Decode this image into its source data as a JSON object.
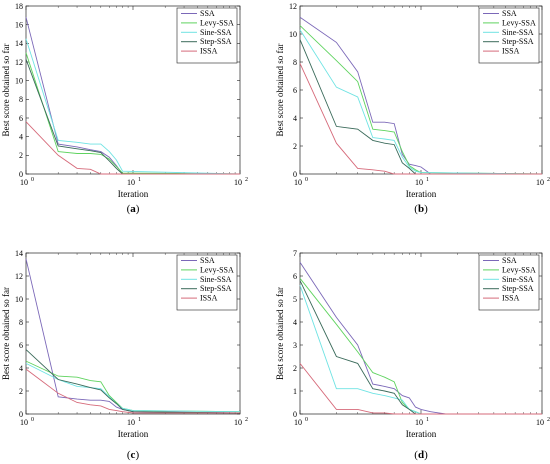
{
  "chart_data": [
    {
      "type": "line",
      "caption": "(a)",
      "xlabel": "Iteration",
      "ylabel": "Best score obtained so far",
      "x_scale": "log",
      "xlim": [
        1,
        100
      ],
      "ylim": [
        0,
        18
      ],
      "x_ticks": [
        1,
        10,
        100
      ],
      "x_tick_labels": [
        "10",
        "10",
        "10"
      ],
      "x_tick_exponents": [
        "0",
        "1",
        "2"
      ],
      "y_ticks": [
        0,
        2,
        4,
        6,
        8,
        10,
        12,
        14,
        16,
        18
      ],
      "y_tick_labels": [
        "0",
        "2",
        "4",
        "6",
        "8",
        "10",
        "12",
        "14",
        "16",
        "18"
      ],
      "legend_position": "top-right",
      "series": [
        {
          "name": "SSA",
          "color": "#7b68b8",
          "x": [
            1,
            2,
            3,
            4,
            5,
            6,
            7,
            8,
            100
          ],
          "y": [
            16.8,
            3.2,
            2.9,
            2.6,
            2.4,
            1.8,
            0.9,
            0.0,
            0.0
          ]
        },
        {
          "name": "Levy-SSA",
          "color": "#5fd35f",
          "x": [
            1,
            2,
            3,
            4,
            5,
            6,
            7,
            8,
            100
          ],
          "y": [
            13.0,
            2.4,
            2.2,
            2.2,
            2.1,
            1.6,
            0.8,
            0.1,
            0.0
          ]
        },
        {
          "name": "Sine-SSA",
          "color": "#6fe3e3",
          "x": [
            1,
            2,
            3,
            4,
            5,
            6,
            7,
            8,
            100
          ],
          "y": [
            14.5,
            3.6,
            3.4,
            3.2,
            3.2,
            2.4,
            1.5,
            0.3,
            0.0
          ]
        },
        {
          "name": "Step-SSA",
          "color": "#3a6a5a",
          "x": [
            1,
            2,
            3,
            4,
            5,
            6,
            7,
            8,
            100
          ],
          "y": [
            12.3,
            3.0,
            2.7,
            2.5,
            2.3,
            1.4,
            0.6,
            0.0,
            0.0
          ]
        },
        {
          "name": "ISSA",
          "color": "#d66a7a",
          "x": [
            1,
            2,
            3,
            4,
            5,
            100
          ],
          "y": [
            5.6,
            2.0,
            0.6,
            0.5,
            0.0,
            0.0
          ]
        }
      ]
    },
    {
      "type": "line",
      "caption": "(b)",
      "xlabel": "Iteration",
      "ylabel": "Best score obtained so far",
      "x_scale": "log",
      "xlim": [
        1,
        100
      ],
      "ylim": [
        0,
        12
      ],
      "x_ticks": [
        1,
        10,
        100
      ],
      "x_tick_labels": [
        "10",
        "10",
        "10"
      ],
      "x_tick_exponents": [
        "0",
        "1",
        "2"
      ],
      "y_ticks": [
        0,
        2,
        4,
        6,
        8,
        10,
        12
      ],
      "y_tick_labels": [
        "0",
        "2",
        "4",
        "6",
        "8",
        "10",
        "12"
      ],
      "legend_position": "top-right",
      "series": [
        {
          "name": "SSA",
          "color": "#7b68b8",
          "x": [
            1,
            2,
            3,
            4,
            5,
            6,
            7,
            8,
            9,
            10,
            12,
            100
          ],
          "y": [
            11.2,
            9.4,
            7.3,
            3.7,
            3.7,
            3.6,
            1.4,
            0.7,
            0.6,
            0.5,
            0.0,
            0.0
          ]
        },
        {
          "name": "Levy-SSA",
          "color": "#5fd35f",
          "x": [
            1,
            2,
            3,
            4,
            5,
            6,
            7,
            8,
            9,
            10,
            100
          ],
          "y": [
            10.6,
            8.1,
            6.6,
            3.2,
            3.1,
            3.0,
            1.6,
            0.6,
            0.3,
            0.1,
            0.0
          ]
        },
        {
          "name": "Sine-SSA",
          "color": "#6fe3e3",
          "x": [
            1,
            2,
            3,
            4,
            5,
            6,
            7,
            8,
            9,
            10,
            100
          ],
          "y": [
            10.3,
            6.2,
            5.5,
            2.6,
            2.5,
            2.4,
            1.2,
            0.5,
            0.2,
            0.1,
            0.0
          ]
        },
        {
          "name": "Step-SSA",
          "color": "#3a6a5a",
          "x": [
            1,
            2,
            3,
            4,
            5,
            6,
            7,
            8,
            9,
            100
          ],
          "y": [
            9.6,
            3.4,
            3.2,
            2.4,
            2.2,
            2.1,
            0.8,
            0.4,
            0.0,
            0.0
          ]
        },
        {
          "name": "ISSA",
          "color": "#d66a7a",
          "x": [
            1,
            2,
            3,
            4,
            5,
            6,
            100
          ],
          "y": [
            7.9,
            2.2,
            0.4,
            0.3,
            0.2,
            0.0,
            0.0
          ]
        }
      ]
    },
    {
      "type": "line",
      "caption": "(c)",
      "xlabel": "Iteration",
      "ylabel": "Best score obtained so far",
      "x_scale": "log",
      "xlim": [
        1,
        100
      ],
      "ylim": [
        0,
        14
      ],
      "x_ticks": [
        1,
        10,
        100
      ],
      "x_tick_labels": [
        "10",
        "10",
        "10"
      ],
      "x_tick_exponents": [
        "0",
        "1",
        "2"
      ],
      "y_ticks": [
        0,
        2,
        4,
        6,
        8,
        10,
        12,
        14
      ],
      "y_tick_labels": [
        "0",
        "2",
        "4",
        "6",
        "8",
        "10",
        "12",
        "14"
      ],
      "legend_position": "top-right",
      "series": [
        {
          "name": "SSA",
          "color": "#7b68b8",
          "x": [
            1,
            2,
            3,
            4,
            5,
            6,
            7,
            8,
            10,
            100
          ],
          "y": [
            13.5,
            1.5,
            1.3,
            1.2,
            1.2,
            1.1,
            0.6,
            0.4,
            0.2,
            0.1
          ]
        },
        {
          "name": "Levy-SSA",
          "color": "#5fd35f",
          "x": [
            1,
            2,
            3,
            4,
            5,
            6,
            7,
            8,
            10,
            100
          ],
          "y": [
            4.6,
            3.3,
            3.2,
            2.9,
            2.8,
            1.6,
            1.0,
            0.5,
            0.3,
            0.2
          ]
        },
        {
          "name": "Sine-SSA",
          "color": "#6fe3e3",
          "x": [
            1,
            2,
            3,
            4,
            5,
            6,
            7,
            8,
            10,
            100
          ],
          "y": [
            4.4,
            3.0,
            2.4,
            2.3,
            2.2,
            1.5,
            0.9,
            0.5,
            0.3,
            0.2
          ]
        },
        {
          "name": "Step-SSA",
          "color": "#3a6a5a",
          "x": [
            1,
            2,
            3,
            4,
            5,
            6,
            7,
            8,
            10,
            100
          ],
          "y": [
            5.6,
            3.0,
            2.6,
            2.3,
            2.1,
            1.4,
            0.9,
            0.4,
            0.2,
            0.1
          ]
        },
        {
          "name": "ISSA",
          "color": "#d66a7a",
          "x": [
            1,
            2,
            3,
            4,
            5,
            6,
            7,
            8,
            10,
            100
          ],
          "y": [
            3.9,
            1.8,
            1.0,
            0.8,
            0.7,
            0.4,
            0.3,
            0.2,
            0.1,
            0.1
          ]
        }
      ]
    },
    {
      "type": "line",
      "caption": "(d)",
      "xlabel": "Iteration",
      "ylabel": "Best score obtained so far",
      "x_scale": "log",
      "xlim": [
        1,
        100
      ],
      "ylim": [
        0,
        7
      ],
      "x_ticks": [
        1,
        10,
        100
      ],
      "x_tick_labels": [
        "10",
        "10",
        "10"
      ],
      "x_tick_exponents": [
        "0",
        "1",
        "2"
      ],
      "y_ticks": [
        0,
        1,
        2,
        3,
        4,
        5,
        6,
        7
      ],
      "y_tick_labels": [
        "0",
        "1",
        "2",
        "3",
        "4",
        "5",
        "6",
        "7"
      ],
      "legend_position": "top-right",
      "series": [
        {
          "name": "SSA",
          "color": "#7b68b8",
          "x": [
            1,
            2,
            3,
            4,
            5,
            6,
            7,
            8,
            9,
            10,
            12,
            14,
            16,
            100
          ],
          "y": [
            6.6,
            4.2,
            3.0,
            1.3,
            1.2,
            1.1,
            0.8,
            0.7,
            0.3,
            0.2,
            0.1,
            0.05,
            0.0,
            0.0
          ]
        },
        {
          "name": "Levy-SSA",
          "color": "#5fd35f",
          "x": [
            1,
            2,
            3,
            4,
            5,
            6,
            7,
            8,
            9,
            10,
            100
          ],
          "y": [
            5.9,
            3.9,
            2.7,
            1.8,
            1.6,
            1.4,
            0.5,
            0.2,
            0.1,
            0.0,
            0.0
          ]
        },
        {
          "name": "Sine-SSA",
          "color": "#6fe3e3",
          "x": [
            1,
            2,
            3,
            4,
            5,
            6,
            7,
            8,
            9,
            10,
            100
          ],
          "y": [
            5.6,
            1.1,
            1.1,
            0.9,
            0.8,
            0.7,
            0.6,
            0.2,
            0.1,
            0.0,
            0.0
          ]
        },
        {
          "name": "Step-SSA",
          "color": "#3a6a5a",
          "x": [
            1,
            2,
            3,
            4,
            5,
            6,
            7,
            8,
            9,
            100
          ],
          "y": [
            5.8,
            2.5,
            2.2,
            1.1,
            1.0,
            0.9,
            0.4,
            0.2,
            0.0,
            0.0
          ]
        },
        {
          "name": "ISSA",
          "color": "#d66a7a",
          "x": [
            1,
            2,
            3,
            4,
            5,
            6,
            100
          ],
          "y": [
            2.2,
            0.2,
            0.2,
            0.05,
            0.05,
            0.0,
            0.0
          ]
        }
      ]
    }
  ]
}
